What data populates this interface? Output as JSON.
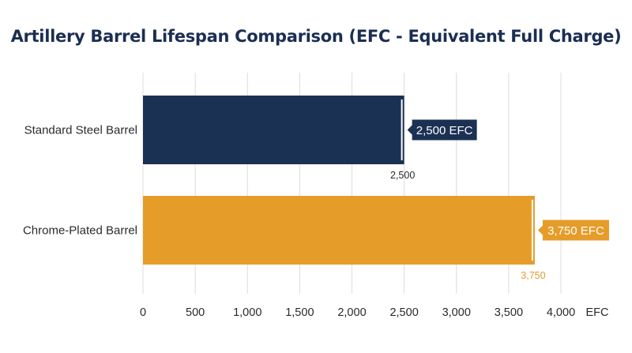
{
  "chart_data": {
    "type": "bar",
    "orientation": "horizontal",
    "title": "Artillery Barrel Lifespan Comparison (EFC - Equivalent Full Charge)",
    "categories": [
      "Standard Steel Barrel",
      "Chrome-Plated Barrel"
    ],
    "values": [
      2500,
      3750
    ],
    "value_labels": [
      "2,500",
      "3,750"
    ],
    "callout_labels": [
      "2,500 EFC",
      "3,750 EFC"
    ],
    "colors": [
      "#1b3153",
      "#e59c29"
    ],
    "xlabel": "EFC",
    "xlim": [
      0,
      4000
    ],
    "xticks": [
      0,
      500,
      1000,
      1500,
      2000,
      2500,
      3000,
      3500,
      4000
    ],
    "xtick_labels": [
      "0",
      "500",
      "1,000",
      "1,500",
      "2,000",
      "2,500",
      "3,000",
      "3,500",
      "4,000"
    ],
    "grid": true,
    "legend": "none"
  }
}
